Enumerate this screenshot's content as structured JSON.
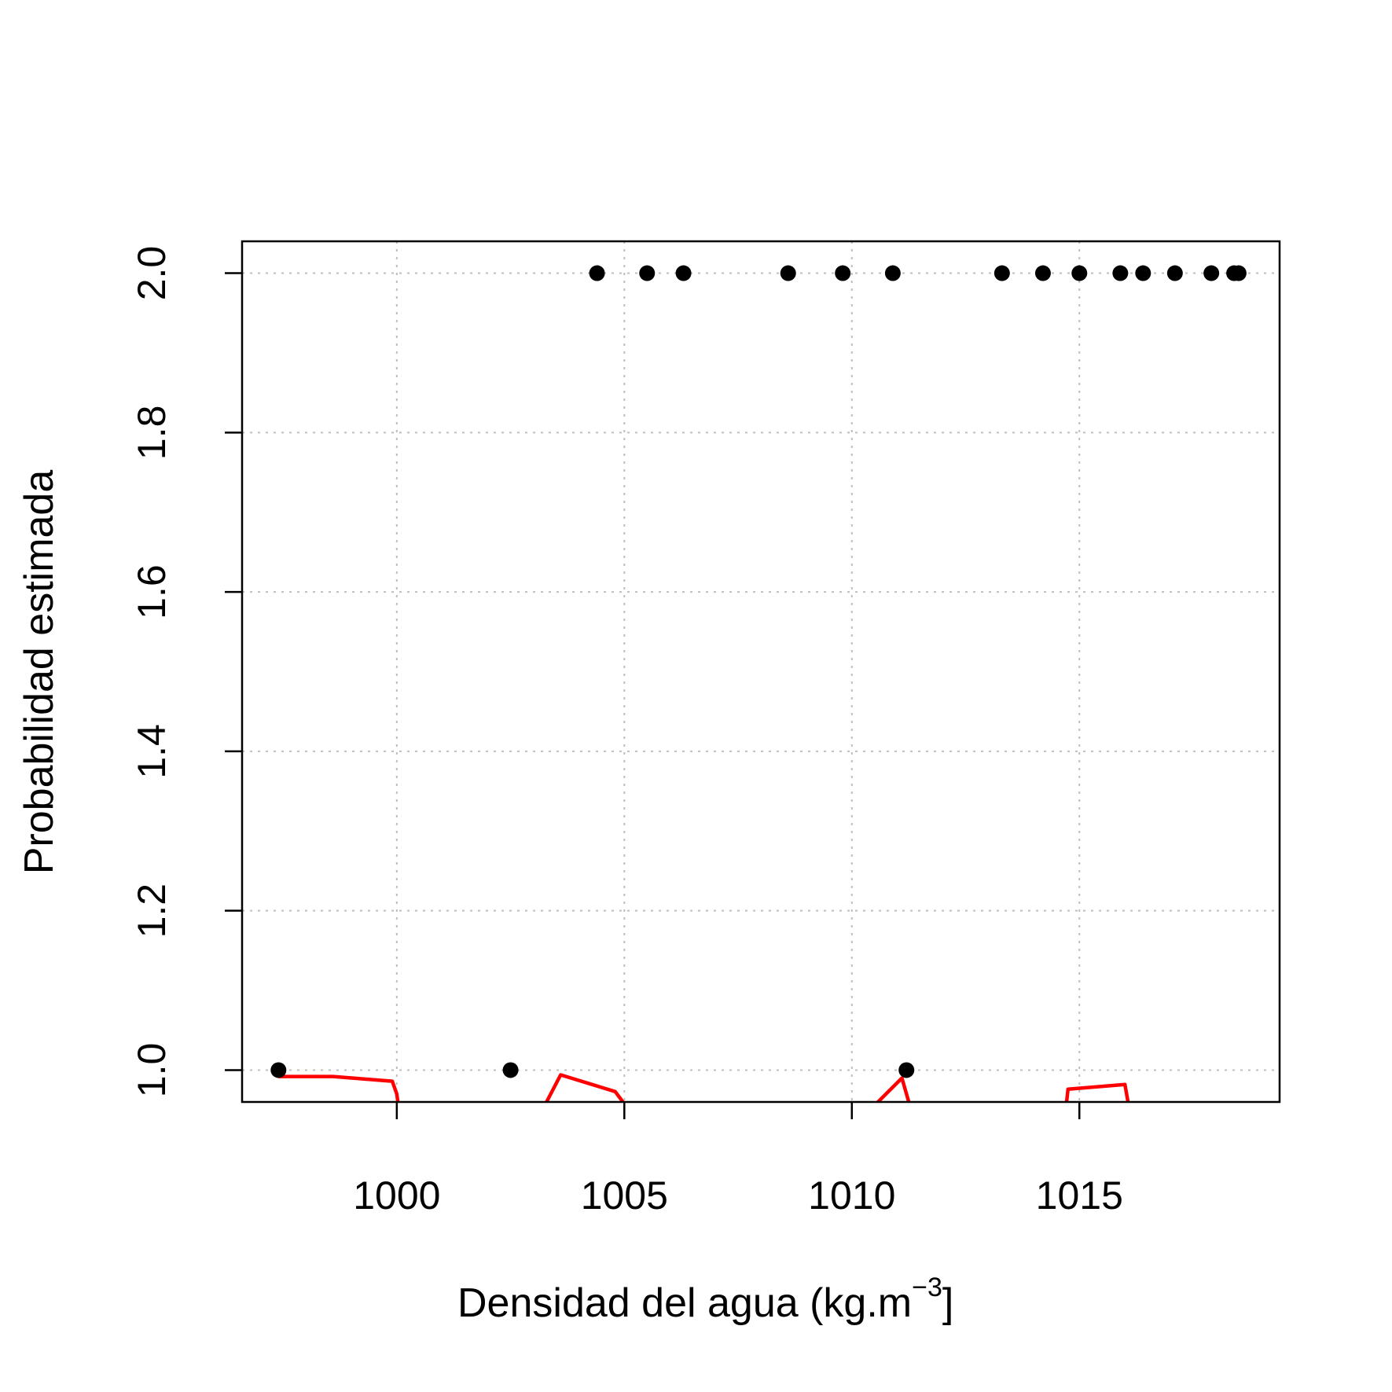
{
  "chart_data": {
    "type": "scatter",
    "title": "",
    "xlabel": "Densidad del agua (kg.m",
    "xlabel_superscript": "−3",
    "xlabel_suffix": "]",
    "ylabel": "Probabilidad estimada",
    "xlim": [
      996.6,
      1019.4
    ],
    "ylim": [
      0.96,
      2.04
    ],
    "x_ticks": [
      1000,
      1005,
      1010,
      1015
    ],
    "x_tick_labels": [
      "1000",
      "1005",
      "1010",
      "1015"
    ],
    "y_ticks": [
      1.0,
      1.2,
      1.4,
      1.6,
      1.8,
      2.0
    ],
    "y_tick_labels": [
      "1.0",
      "1.2",
      "1.4",
      "1.6",
      "1.8",
      "2.0"
    ],
    "grid": true,
    "legend": "none",
    "colors": {
      "points": "#000000",
      "line": "#ff0000",
      "grid": "#bebebe",
      "frame": "#000000"
    },
    "points": {
      "x": [
        997.4,
        1002.5,
        1004.4,
        1005.5,
        1006.3,
        1008.6,
        1009.8,
        1010.9,
        1011.2,
        1013.3,
        1014.2,
        1015.0,
        1015.9,
        1016.4,
        1017.1,
        1017.9,
        1018.4,
        1018.5
      ],
      "y": [
        1,
        1,
        2,
        2,
        2,
        2,
        2,
        2,
        1,
        2,
        2,
        2,
        2,
        2,
        2,
        2,
        2,
        2
      ]
    },
    "fitted_line": {
      "x": [
        997.4,
        998.6,
        999.9,
        1000.0,
        1000.05,
        1003.2,
        1003.6,
        1004.8,
        1005.1,
        1008.5,
        1008.6,
        1008.7,
        1010.4,
        1011.1,
        1011.3,
        1014.7,
        1014.75,
        1016.0,
        1016.1
      ],
      "y": [
        0.992,
        0.992,
        0.986,
        0.97,
        0.95,
        0.95,
        0.994,
        0.973,
        0.95,
        0.95,
        0.958,
        0.95,
        0.95,
        0.99,
        0.95,
        0.95,
        0.976,
        0.982,
        0.95
      ]
    }
  }
}
